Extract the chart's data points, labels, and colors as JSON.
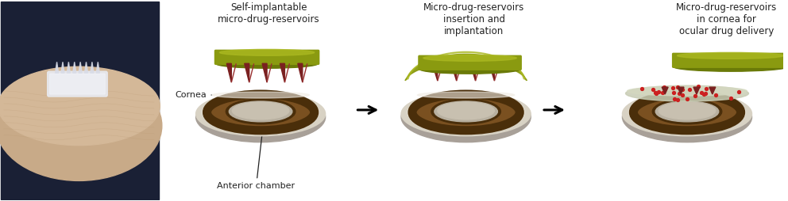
{
  "label1": "Self-implantable\nmicro-drug-reservoirs",
  "label2": "Micro-drug-reservoirs\ninsertion and\nimplantation",
  "label3": "Micro-drug-reservoirs\nin cornea for\nocular drug delivery",
  "cornea_label": "Cornea",
  "anterior_label": "Anterior chamber",
  "white_bg": "#ffffff",
  "eye_brown": "#7a5020",
  "eye_dark_brown": "#4a2e0a",
  "eye_white_outer": "#c8c0b0",
  "eye_white_inner": "#e0d8c8",
  "eye_highlight": "#d0c8b0",
  "cornea_rim": "#c8c0b0",
  "patch_olive": "#8a9a10",
  "patch_olive_light": "#aab820",
  "patch_olive_dark": "#6a7a08",
  "needle_dark": "#7a2020",
  "needle_mid": "#9a3030",
  "needle_light": "#c06060",
  "dot_red": "#cc2020",
  "arrow_color": "#111111",
  "text_color": "#222222",
  "label_fontsize": 8.5,
  "annotation_fontsize": 8,
  "cornea_drug_color": "#b8c0a0",
  "cornea_drug_light": "#d0d8b8"
}
